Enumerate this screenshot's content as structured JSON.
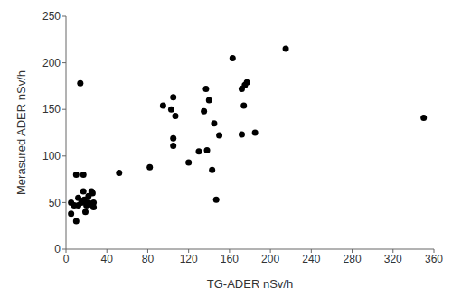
{
  "chart_data": {
    "type": "scatter",
    "x_label": "TG-ADER nSv/h",
    "y_label": "Merasured ADER nSv/h",
    "x": [
      5,
      5,
      10,
      10,
      12,
      14,
      15,
      17,
      17,
      17,
      18,
      19,
      20,
      22,
      22,
      24,
      25,
      26,
      26,
      27,
      27,
      12,
      8,
      52,
      82,
      95,
      103,
      105,
      105,
      105,
      107,
      120,
      130,
      135,
      137,
      138,
      140,
      143,
      145,
      147,
      150,
      163,
      172,
      172,
      175,
      174,
      177,
      185,
      215,
      350
    ],
    "values": [
      38,
      50,
      80,
      30,
      47,
      178,
      50,
      80,
      62,
      52,
      53,
      40,
      47,
      50,
      57,
      48,
      62,
      60,
      48,
      50,
      45,
      55,
      47,
      82,
      88,
      154,
      150,
      163,
      119,
      111,
      143,
      93,
      105,
      148,
      172,
      106,
      160,
      85,
      135,
      53,
      122,
      205,
      123,
      172,
      176,
      154,
      179,
      125,
      215,
      141
    ],
    "color": "#000000",
    "marker": "circle",
    "xlim": [
      0,
      360
    ],
    "xticks": [
      0,
      40,
      80,
      120,
      160,
      200,
      240,
      280,
      320,
      360
    ],
    "ylim": [
      0,
      250
    ],
    "yticks": [
      0,
      50,
      100,
      150,
      200,
      250
    ],
    "grid": false
  }
}
